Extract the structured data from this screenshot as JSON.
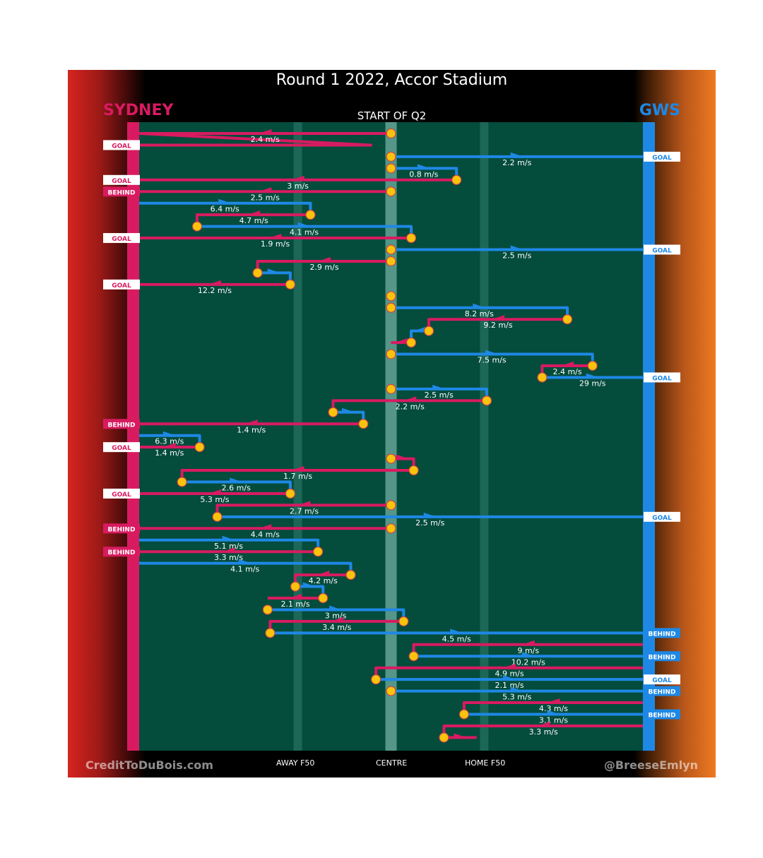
{
  "header": {
    "title": "Round 1 2022, Accor Stadium",
    "team_left": "SYDNEY",
    "team_right": "GWS",
    "quarter": "START OF Q2"
  },
  "footer": {
    "credit_left": "CreditToDuBois.com",
    "credit_right": "@BreeseEmlyn",
    "markers": [
      {
        "label": "AWAY F50",
        "x": 0.315
      },
      {
        "label": "CENTRE",
        "x": 0.5
      },
      {
        "label": "HOME F50",
        "x": 0.685
      }
    ]
  },
  "colors": {
    "sydney": "#d81b60",
    "gws": "#1e88e5",
    "field": "#044c3c",
    "start_marker": "#f9c30c"
  },
  "chart_data": {
    "type": "line",
    "description_axis": "x = field position (0 = Sydney goal, 1 = GWS goal); each row is one possession chain",
    "x_markers": {
      "away_f50": 0.315,
      "centre": 0.5,
      "home_f50": 0.685
    },
    "chains": [
      {
        "team": "sydney",
        "start": 0.5,
        "segments": [
          [
            0.5,
            0.0,
            1
          ],
          [
            0.46,
            0.0,
            2
          ]
        ],
        "speed": "2.4 m/s",
        "result": "GOAL"
      },
      {
        "team": "gws",
        "start": 0.5,
        "segments": [
          [
            0.5,
            1.0,
            3
          ]
        ],
        "speed": "2.2 m/s",
        "result": "GOAL"
      },
      {
        "team": "gws",
        "start": 0.5,
        "segments": [
          [
            0.5,
            0.63,
            4
          ],
          [
            0.63,
            0.63,
            5
          ]
        ],
        "speed": "0.8 m/s",
        "result": ""
      },
      {
        "team": "sydney",
        "start": 0.63,
        "segments": [
          [
            0.63,
            0.0,
            5
          ]
        ],
        "speed": "3 m/s",
        "result": "GOAL"
      },
      {
        "team": "sydney",
        "start": 0.5,
        "segments": [
          [
            0.5,
            0.0,
            6
          ]
        ],
        "speed": "2.5 m/s",
        "result": "BEHIND"
      },
      {
        "team": "gws",
        "start": 0.0,
        "segments": [
          [
            0.0,
            0.34,
            7
          ],
          [
            0.34,
            0.34,
            8
          ]
        ],
        "speed": "6.4 m/s",
        "result": ""
      },
      {
        "team": "sydney",
        "start": 0.34,
        "segments": [
          [
            0.34,
            0.115,
            8
          ],
          [
            0.115,
            0.115,
            9
          ]
        ],
        "speed": "4.7 m/s",
        "result": ""
      },
      {
        "team": "gws",
        "start": 0.115,
        "segments": [
          [
            0.115,
            0.54,
            9
          ],
          [
            0.54,
            0.54,
            10
          ]
        ],
        "speed": "4.1 m/s",
        "result": ""
      },
      {
        "team": "sydney",
        "start": 0.54,
        "segments": [
          [
            0.54,
            0.0,
            10
          ]
        ],
        "speed": "1.9 m/s",
        "result": "GOAL"
      },
      {
        "team": "gws",
        "start": 0.5,
        "segments": [
          [
            0.5,
            1.0,
            11
          ]
        ],
        "speed": "2.5 m/s",
        "result": "GOAL"
      },
      {
        "team": "sydney",
        "start": 0.5,
        "segments": [
          [
            0.5,
            0.235,
            12
          ],
          [
            0.235,
            0.235,
            13
          ]
        ],
        "speed": "2.9 m/s",
        "result": ""
      },
      {
        "team": "gws",
        "start": 0.235,
        "segments": [
          [
            0.235,
            0.3,
            13
          ],
          [
            0.3,
            0.3,
            14
          ]
        ],
        "speed": "",
        "result": ""
      },
      {
        "team": "sydney",
        "start": 0.3,
        "segments": [
          [
            0.3,
            0.0,
            14
          ]
        ],
        "speed": "12.2 m/s",
        "result": "GOAL"
      },
      {
        "team": "sydney",
        "start": 0.5,
        "segments": [
          [
            0.5,
            0.5,
            15
          ]
        ],
        "speed": "",
        "result": ""
      },
      {
        "team": "gws",
        "start": 0.5,
        "segments": [
          [
            0.5,
            0.85,
            16
          ],
          [
            0.85,
            0.85,
            17
          ]
        ],
        "speed": "8.2 m/s",
        "result": ""
      },
      {
        "team": "sydney",
        "start": 0.85,
        "segments": [
          [
            0.85,
            0.575,
            17
          ],
          [
            0.575,
            0.575,
            18
          ]
        ],
        "speed": "9.2 m/s",
        "result": ""
      },
      {
        "team": "gws",
        "start": 0.575,
        "segments": [
          [
            0.575,
            0.54,
            18
          ],
          [
            0.54,
            0.54,
            19
          ]
        ],
        "speed": "",
        "result": ""
      },
      {
        "team": "sydney",
        "start": 0.54,
        "segments": [
          [
            0.54,
            0.5,
            19
          ]
        ],
        "speed": "",
        "result": ""
      },
      {
        "team": "gws",
        "start": 0.5,
        "segments": [
          [
            0.5,
            0.9,
            20
          ],
          [
            0.9,
            0.9,
            21
          ]
        ],
        "speed": "7.5 m/s",
        "result": ""
      },
      {
        "team": "sydney",
        "start": 0.9,
        "segments": [
          [
            0.9,
            0.8,
            21
          ],
          [
            0.8,
            0.8,
            22
          ]
        ],
        "speed": "2.4 m/s",
        "result": ""
      },
      {
        "team": "gws",
        "start": 0.8,
        "segments": [
          [
            0.8,
            1.0,
            22
          ]
        ],
        "speed": "29 m/s",
        "result": "GOAL"
      },
      {
        "team": "gws",
        "start": 0.5,
        "segments": [
          [
            0.5,
            0.69,
            23
          ],
          [
            0.69,
            0.69,
            24
          ]
        ],
        "speed": "2.5 m/s",
        "result": ""
      },
      {
        "team": "sydney",
        "start": 0.69,
        "segments": [
          [
            0.69,
            0.385,
            24
          ],
          [
            0.385,
            0.385,
            25
          ]
        ],
        "speed": "2.2 m/s",
        "result": ""
      },
      {
        "team": "gws",
        "start": 0.385,
        "segments": [
          [
            0.385,
            0.445,
            25
          ],
          [
            0.445,
            0.445,
            26
          ]
        ],
        "speed": "",
        "result": ""
      },
      {
        "team": "sydney",
        "start": 0.445,
        "segments": [
          [
            0.445,
            0.0,
            26
          ]
        ],
        "speed": "1.4 m/s",
        "result": "BEHIND"
      },
      {
        "team": "gws",
        "start": 0.0,
        "segments": [
          [
            0.0,
            0.12,
            27
          ],
          [
            0.12,
            0.12,
            28
          ]
        ],
        "speed": "6.3 m/s",
        "result": ""
      },
      {
        "team": "sydney",
        "start": 0.12,
        "segments": [
          [
            0.12,
            0.0,
            28
          ]
        ],
        "speed": "1.4 m/s",
        "result": "GOAL"
      },
      {
        "team": "sydney",
        "start": 0.5,
        "segments": [
          [
            0.5,
            0.545,
            29
          ],
          [
            0.545,
            0.545,
            30
          ]
        ],
        "speed": "",
        "result": ""
      },
      {
        "team": "sydney",
        "start": 0.545,
        "segments": [
          [
            0.545,
            0.085,
            30
          ],
          [
            0.085,
            0.085,
            31
          ]
        ],
        "speed": "1.7 m/s",
        "result": ""
      },
      {
        "team": "gws",
        "start": 0.085,
        "segments": [
          [
            0.085,
            0.3,
            31
          ],
          [
            0.3,
            0.3,
            32
          ]
        ],
        "speed": "2.6 m/s",
        "result": ""
      },
      {
        "team": "sydney",
        "start": 0.3,
        "segments": [
          [
            0.3,
            0.0,
            32
          ]
        ],
        "speed": "5.3 m/s",
        "result": "GOAL"
      },
      {
        "team": "sydney",
        "start": 0.5,
        "segments": [
          [
            0.5,
            0.155,
            33
          ],
          [
            0.155,
            0.155,
            34
          ]
        ],
        "speed": "2.7 m/s",
        "result": ""
      },
      {
        "team": "gws",
        "start": 0.155,
        "segments": [
          [
            0.155,
            1.0,
            34
          ]
        ],
        "speed": "2.5 m/s",
        "result": "GOAL"
      },
      {
        "team": "sydney",
        "start": 0.5,
        "segments": [
          [
            0.5,
            0.0,
            35
          ]
        ],
        "speed": "4.4 m/s",
        "result": "BEHIND"
      },
      {
        "team": "gws",
        "start": 0.0,
        "segments": [
          [
            0.0,
            0.355,
            36
          ],
          [
            0.355,
            0.355,
            37
          ]
        ],
        "speed": "5.1 m/s",
        "result": ""
      },
      {
        "team": "sydney",
        "start": 0.355,
        "segments": [
          [
            0.355,
            0.0,
            37
          ]
        ],
        "speed": "3.3 m/s",
        "result": "BEHIND"
      },
      {
        "team": "gws",
        "start": 0.0,
        "segments": [
          [
            0.0,
            0.42,
            38
          ],
          [
            0.42,
            0.42,
            39
          ]
        ],
        "speed": "4.1 m/s",
        "result": ""
      },
      {
        "team": "sydney",
        "start": 0.42,
        "segments": [
          [
            0.42,
            0.31,
            39
          ],
          [
            0.31,
            0.31,
            40
          ]
        ],
        "speed": "4.2 m/s",
        "result": ""
      },
      {
        "team": "gws",
        "start": 0.31,
        "segments": [
          [
            0.31,
            0.365,
            40
          ],
          [
            0.365,
            0.365,
            41
          ]
        ],
        "speed": "",
        "result": ""
      },
      {
        "team": "sydney",
        "start": 0.365,
        "segments": [
          [
            0.365,
            0.255,
            41
          ]
        ],
        "speed": "2.1 m/s",
        "result": ""
      },
      {
        "team": "gws",
        "start": 0.255,
        "segments": [
          [
            0.255,
            0.525,
            42
          ],
          [
            0.525,
            0.525,
            43
          ]
        ],
        "speed": "3 m/s",
        "result": ""
      },
      {
        "team": "sydney",
        "start": 0.525,
        "segments": [
          [
            0.525,
            0.26,
            43
          ],
          [
            0.26,
            0.26,
            44
          ]
        ],
        "speed": "3.4 m/s",
        "result": ""
      },
      {
        "team": "gws",
        "start": 0.26,
        "segments": [
          [
            0.26,
            1.0,
            44
          ]
        ],
        "speed": "4.5 m/s",
        "result": "BEHIND"
      },
      {
        "team": "sydney",
        "start": 1.0,
        "segments": [
          [
            1.0,
            0.545,
            45
          ],
          [
            0.545,
            0.545,
            46
          ]
        ],
        "speed": "9 m/s",
        "result": ""
      },
      {
        "team": "gws",
        "start": 0.545,
        "segments": [
          [
            0.545,
            1.0,
            46
          ]
        ],
        "speed": "10.2 m/s",
        "result": "BEHIND"
      },
      {
        "team": "sydney",
        "start": 1.0,
        "segments": [
          [
            1.0,
            0.47,
            47
          ],
          [
            0.47,
            0.47,
            48
          ]
        ],
        "speed": "4.9 m/s",
        "result": ""
      },
      {
        "team": "gws",
        "start": 0.47,
        "segments": [
          [
            0.47,
            1.0,
            48
          ]
        ],
        "speed": "2.1 m/s",
        "result": "GOAL"
      },
      {
        "team": "gws",
        "start": 0.5,
        "segments": [
          [
            0.5,
            1.0,
            49
          ]
        ],
        "speed": "5.3 m/s",
        "result": "BEHIND"
      },
      {
        "team": "sydney",
        "start": 1.0,
        "segments": [
          [
            1.0,
            0.645,
            50
          ],
          [
            0.645,
            0.645,
            51
          ]
        ],
        "speed": "4.3 m/s",
        "result": ""
      },
      {
        "team": "gws",
        "start": 0.645,
        "segments": [
          [
            0.645,
            1.0,
            51
          ]
        ],
        "speed": "3.1 m/s",
        "result": "BEHIND"
      },
      {
        "team": "sydney",
        "start": 1.0,
        "segments": [
          [
            1.0,
            0.605,
            52
          ],
          [
            0.605,
            0.605,
            53
          ]
        ],
        "speed": "3.3 m/s",
        "result": ""
      },
      {
        "team": "sydney",
        "start": 0.605,
        "segments": [
          [
            0.605,
            0.67,
            53
          ]
        ],
        "speed": "",
        "result": ""
      }
    ]
  }
}
